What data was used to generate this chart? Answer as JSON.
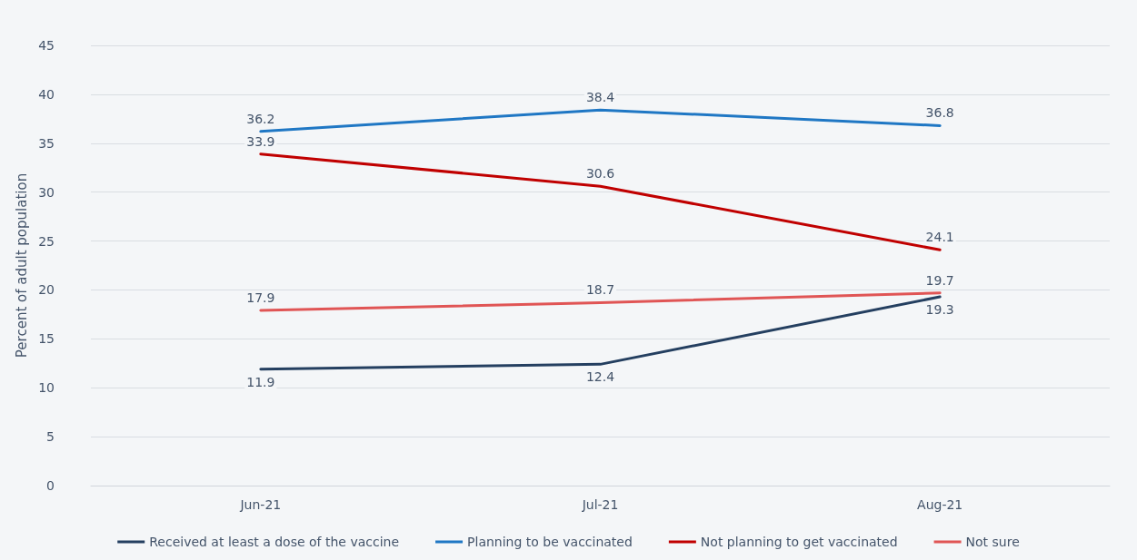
{
  "chart_data": {
    "type": "line",
    "ylabel": "Percent of adult population",
    "categories": [
      "Jun-21",
      "Jul-21",
      "Aug-21"
    ],
    "series": [
      {
        "name": "Received at least a dose of the vaccine",
        "color": "#243f60",
        "values": [
          11.9,
          12.4,
          19.3
        ]
      },
      {
        "name": "Planning to be vaccinated",
        "color": "#1f77c4",
        "values": [
          36.2,
          38.4,
          36.8
        ]
      },
      {
        "name": "Not planning to get vaccinated",
        "color": "#c00000",
        "values": [
          33.9,
          30.6,
          24.1
        ]
      },
      {
        "name": "Not sure",
        "color": "#e05555",
        "values": [
          17.9,
          18.7,
          19.7
        ]
      }
    ],
    "ylim": [
      0,
      45
    ],
    "yticks": [
      0,
      5,
      10,
      15,
      20,
      25,
      30,
      35,
      40,
      45
    ],
    "grid": "y",
    "legend": "bottom",
    "data_labels": true,
    "marker": "none",
    "line_style": "solid"
  }
}
